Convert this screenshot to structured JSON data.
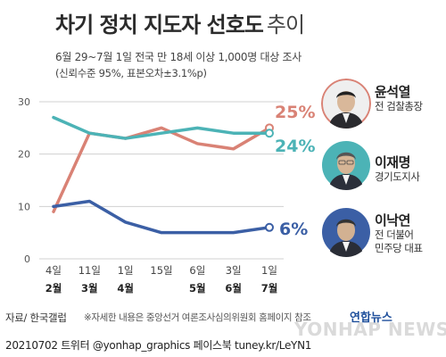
{
  "header": {
    "title_main": "차기 정치 지도자 선호도",
    "title_suffix": "추이",
    "subtitle": "6월 29~7월 1일 전국 만 18세 이상 1,000명 대상 조사",
    "subtitle2": "(신뢰수준 95%, 표본오차±3.1%p)"
  },
  "chart_data": {
    "type": "line",
    "x_day_labels": [
      "4일",
      "11일",
      "1일",
      "15일",
      "6일",
      "3일",
      "1일"
    ],
    "x_month_labels": [
      "2월",
      "3월",
      "4월",
      "",
      "5월",
      "6월",
      "7월"
    ],
    "ylim": [
      0,
      30
    ],
    "yticks": [
      0,
      10,
      20,
      30
    ],
    "grid": true,
    "series": [
      {
        "name": "윤석열",
        "color": "#d98275",
        "points": [
          9,
          24,
          23,
          25,
          22,
          21,
          25
        ],
        "end_label": "25%"
      },
      {
        "name": "이재명",
        "color": "#4cb3b6",
        "points": [
          27,
          24,
          23,
          24,
          25,
          24,
          24
        ],
        "end_label": "24%"
      },
      {
        "name": "이낙연",
        "color": "#3b5fa5",
        "points": [
          10,
          11,
          7,
          5,
          5,
          5,
          6
        ],
        "end_label": "6%"
      }
    ]
  },
  "candidates": [
    {
      "name": "윤석열",
      "role": "전 검찰총장",
      "ring_color": "#d98275",
      "portrait_label": "윤석열 사진"
    },
    {
      "name": "이재명",
      "role": "경기도지사",
      "ring_color": "#4cb3b6",
      "portrait_label": "이재명 사진"
    },
    {
      "name": "이낙연",
      "role": "전 더불어 민주당 대표",
      "role_line1": "전 더불어",
      "role_line2": "민주당 대표",
      "ring_color": "#3b5fa5",
      "portrait_label": "이낙연 사진"
    }
  ],
  "footer": {
    "source": "자료/ 한국갤럽",
    "note": "※자세한 내용은 중앙선거 여론조사심의위원회 홈페이지 참조",
    "credit": "20210702 트위터 @yonhap_graphics 페이스북 tuney.kr/LeYN1",
    "logo": "연합뉴스",
    "watermark": "YONHAP NEWS"
  }
}
